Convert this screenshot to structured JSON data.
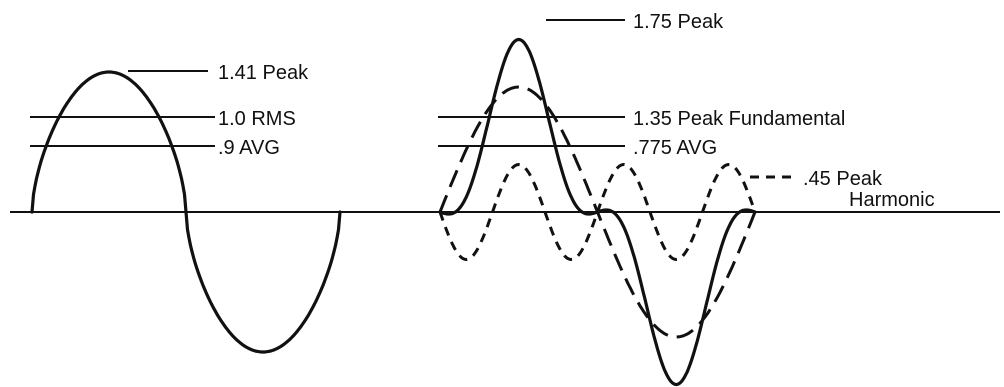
{
  "labels": {
    "sine_peak": "1.41 Peak",
    "sine_rms": "1.0 RMS",
    "sine_avg": ".9 AVG",
    "complex_peak": "1.75 Peak",
    "fundamental_peak": "1.35 Peak Fundamental",
    "complex_avg": ".775 AVG",
    "harmonic_peak_line1": ".45 Peak",
    "harmonic_peak_line2": "Harmonic"
  },
  "values": {
    "sine_peak": 1.41,
    "sine_rms": 1.0,
    "sine_avg": 0.9,
    "complex_peak": 1.75,
    "fundamental_peak": 1.35,
    "complex_avg": 0.775,
    "harmonic_peak": 0.45
  }
}
